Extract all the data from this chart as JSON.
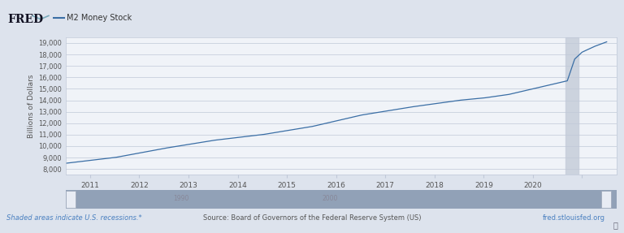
{
  "title": "M2 Money Stock",
  "ylabel": "Billions of Dollars",
  "ylim": [
    7500,
    19500
  ],
  "yticks": [
    8000,
    9000,
    10000,
    11000,
    12000,
    13000,
    14000,
    15000,
    16000,
    17000,
    18000,
    19000
  ],
  "bg_color": "#dde3ed",
  "plot_bg_color": "#f0f3f8",
  "line_color": "#3a6ea5",
  "grid_color": "#c0c8d8",
  "header_bg": "#dde3ed",
  "recession_color": "#c8d0dc",
  "footer_link_color": "#4a80c0",
  "footer_text_color": "#555555",
  "footer_left": "Shaded areas indicate U.S. recessions.*",
  "footer_center": "Source: Board of Governors of the Federal Reserve System (US)",
  "footer_right": "fred.stlouisfed.org",
  "legend_label": "M2 Money Stock",
  "scrollbar_bg": "#c8cdd8",
  "scrollbar_fill": "#7a8faa",
  "scrollbar_handle": "#e0e5ee",
  "x_start_year": 2010.0,
  "x_end_year": 2021.2,
  "knots_x": [
    2010.0,
    2011.0,
    2012.0,
    2013.0,
    2014.0,
    2015.0,
    2016.0,
    2017.0,
    2018.0,
    2018.5,
    2019.0,
    2019.5,
    2020.0,
    2020.2,
    2020.35,
    2020.5,
    2020.75,
    2021.0
  ],
  "knots_y": [
    8500,
    9000,
    9800,
    10500,
    11000,
    11700,
    12700,
    13400,
    14000,
    14200,
    14500,
    15000,
    15500,
    15700,
    17600,
    18200,
    18700,
    19100
  ]
}
